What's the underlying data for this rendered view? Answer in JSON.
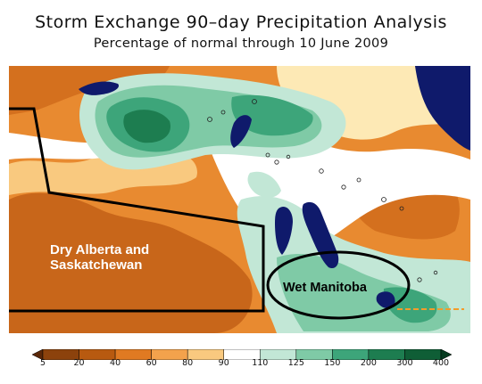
{
  "header": {
    "title": "Storm Exchange 90–day Precipitation Analysis",
    "subtitle": "Percentage of normal through 10 June 2009"
  },
  "map": {
    "annotations": {
      "dry_region": [
        "Dry Alberta and",
        "Saskatchewan"
      ],
      "wet_region": "Wet Manitoba"
    },
    "palette": {
      "very_dry": "#7a3b0a",
      "dry_dark": "#b85a10",
      "dry": "#e07a22",
      "dry_light": "#f3a24c",
      "near_dry": "#f9c97f",
      "near_normal": "#fde9b5",
      "normal": "#ffffff",
      "wet_light": "#c2e7d6",
      "wet": "#7fcaa6",
      "wet_mid": "#3da57a",
      "wet_dark": "#1d7d50",
      "very_wet": "#0a4a2a",
      "water": "#0f1a6b",
      "borders": "#000000"
    }
  },
  "colorbar": {
    "labels": [
      "5",
      "20",
      "40",
      "60",
      "80",
      "90",
      "110",
      "125",
      "150",
      "200",
      "300",
      "400"
    ],
    "colors": [
      "#5a2708",
      "#8c420c",
      "#b85a10",
      "#e07a22",
      "#f3a24c",
      "#f9c97f",
      "#ffffff",
      "#c2e7d6",
      "#7fcaa6",
      "#3da57a",
      "#1d7d50",
      "#0f5e36",
      "#063b20"
    ]
  }
}
